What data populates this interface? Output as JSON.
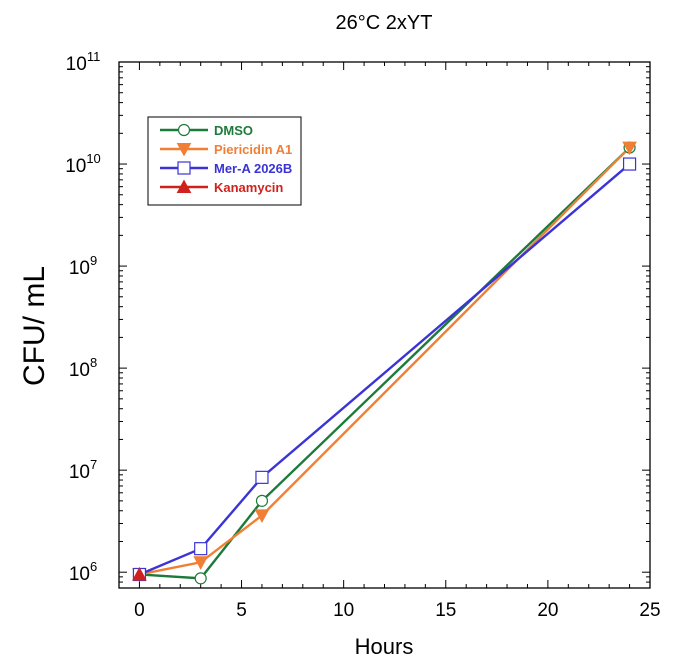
{
  "chart_data": {
    "type": "line",
    "title": "26°C 2xYT",
    "xlabel": "Hours",
    "ylabel": "CFU/ mL",
    "xlim": [
      -1,
      25
    ],
    "ylim": [
      700000,
      100000000000
    ],
    "yscale": "log",
    "x_ticks": [
      0,
      5,
      10,
      15,
      20,
      25
    ],
    "y_ticks": [
      {
        "value": 1000000,
        "mantissa": "10",
        "exp": "6"
      },
      {
        "value": 10000000,
        "mantissa": "10",
        "exp": "7"
      },
      {
        "value": 100000000,
        "mantissa": "10",
        "exp": "8"
      },
      {
        "value": 1000000000,
        "mantissa": "10",
        "exp": "9"
      },
      {
        "value": 10000000000,
        "mantissa": "10",
        "exp": "10"
      },
      {
        "value": 100000000000,
        "mantissa": "10",
        "exp": "11"
      }
    ],
    "grid": false,
    "legend_position": "top-left",
    "series": [
      {
        "name": "DMSO",
        "color": "#1e7a3a",
        "marker": "circle-open",
        "points": [
          [
            0,
            950000
          ],
          [
            3,
            870000
          ],
          [
            6,
            5000000
          ],
          [
            24,
            14500000000
          ]
        ]
      },
      {
        "name": "Piericidin A1",
        "color": "#f07f35",
        "marker": "triangle-down-filled",
        "points": [
          [
            0,
            950000
          ],
          [
            3,
            1250000
          ],
          [
            6,
            3600000
          ],
          [
            24,
            14500000000
          ]
        ]
      },
      {
        "name": "Mer-A 2026B",
        "color": "#3a34d6",
        "marker": "square-open",
        "points": [
          [
            0,
            950000
          ],
          [
            3,
            1700000
          ],
          [
            6,
            8500000
          ],
          [
            24,
            10000000000
          ]
        ]
      },
      {
        "name": "Kanamycin",
        "color": "#d0221c",
        "marker": "triangle-up-filled",
        "points": [
          [
            0,
            950000
          ]
        ]
      }
    ]
  }
}
